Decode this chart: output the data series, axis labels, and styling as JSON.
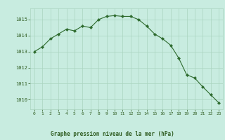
{
  "x": [
    0,
    1,
    2,
    3,
    4,
    5,
    6,
    7,
    8,
    9,
    10,
    11,
    12,
    13,
    14,
    15,
    16,
    17,
    18,
    19,
    20,
    21,
    22,
    23
  ],
  "y": [
    1013.0,
    1013.3,
    1013.8,
    1014.1,
    1014.4,
    1014.3,
    1014.6,
    1014.5,
    1015.0,
    1015.2,
    1015.25,
    1015.2,
    1015.2,
    1015.0,
    1014.6,
    1014.1,
    1013.8,
    1013.4,
    1012.6,
    1011.55,
    1011.35,
    1010.8,
    1010.3,
    1009.8
  ],
  "line_color": "#2d6a2d",
  "marker_color": "#2d6a2d",
  "bg_color": "#c8ece0",
  "grid_color": "#aad4c0",
  "title": "Graphe pression niveau de la mer (hPa)",
  "title_color": "#2d5a1e",
  "ylabel_ticks": [
    1010,
    1011,
    1012,
    1013,
    1014,
    1015
  ],
  "xlabel_ticks": [
    0,
    1,
    2,
    3,
    4,
    5,
    6,
    7,
    8,
    9,
    10,
    11,
    12,
    13,
    14,
    15,
    16,
    17,
    18,
    19,
    20,
    21,
    22,
    23
  ],
  "ylim": [
    1009.4,
    1015.7
  ],
  "xlim": [
    -0.5,
    23.5
  ]
}
